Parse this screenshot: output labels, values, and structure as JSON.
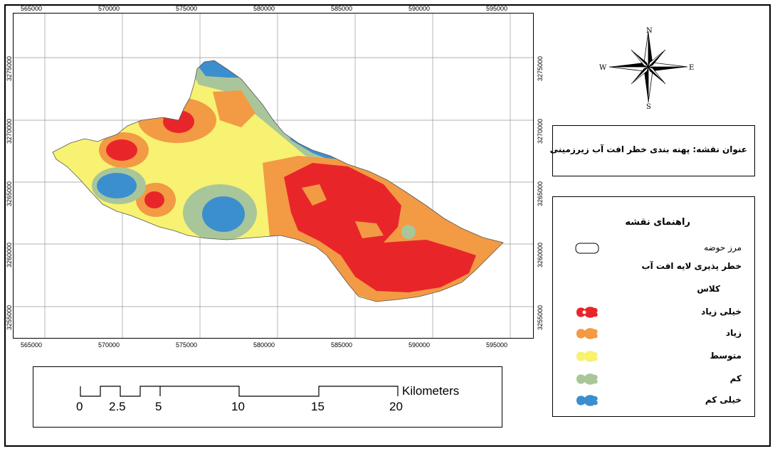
{
  "map": {
    "x_ticks": [
      "565000",
      "570000",
      "575000",
      "580000",
      "585000",
      "590000",
      "595000"
    ],
    "y_ticks": [
      "3275000",
      "3270000",
      "3265000",
      "3260000",
      "3255000"
    ]
  },
  "compass": {
    "n": "N",
    "s": "S",
    "e": "E",
    "w": "W"
  },
  "title_box": {
    "text": "عنوان نقشه: پهنه بندی خطر افت آب زیرزمینی"
  },
  "legend": {
    "heading": "راهنمای نقشه",
    "boundary": "مرز حوضه",
    "layer_title": "خطر پذیری لایه افت آب",
    "class_label": "کلاس",
    "classes": [
      {
        "label": "خیلی زیاد",
        "color": "#e8262a"
      },
      {
        "label": "زیاد",
        "color": "#f39a44"
      },
      {
        "label": "متوسط",
        "color": "#f7f272"
      },
      {
        "label": "کم",
        "color": "#a9c69a"
      },
      {
        "label": "خیلی کم",
        "color": "#3b8fcf"
      }
    ]
  },
  "scale_bar": {
    "unit": "Kilometers",
    "labels": [
      "0",
      "2.5",
      "5",
      "10",
      "15",
      "20"
    ]
  },
  "colors": {
    "very_high": "#e8262a",
    "high": "#f39a44",
    "medium": "#f7f272",
    "low": "#a9c69a",
    "very_low": "#3b8fcf"
  }
}
